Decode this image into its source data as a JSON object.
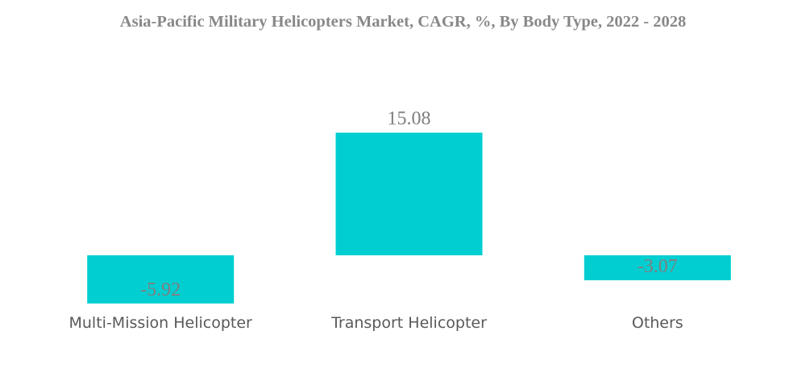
{
  "chart_data": {
    "type": "bar",
    "title": "Asia-Pacific Military Helicopters Market, CAGR, %, By Body Type, 2022 - 2028",
    "categories": [
      "Multi-Mission Helicopter",
      "Transport Helicopter",
      "Others"
    ],
    "values": [
      -5.92,
      15.08,
      -3.07
    ],
    "value_labels": [
      "-5.92",
      "15.08",
      "-3.07"
    ],
    "xlabel": "",
    "ylabel": "",
    "ylim": [
      -5.92,
      15.08
    ],
    "grid": false,
    "legend": "none",
    "bar_color": "#00CED1"
  }
}
